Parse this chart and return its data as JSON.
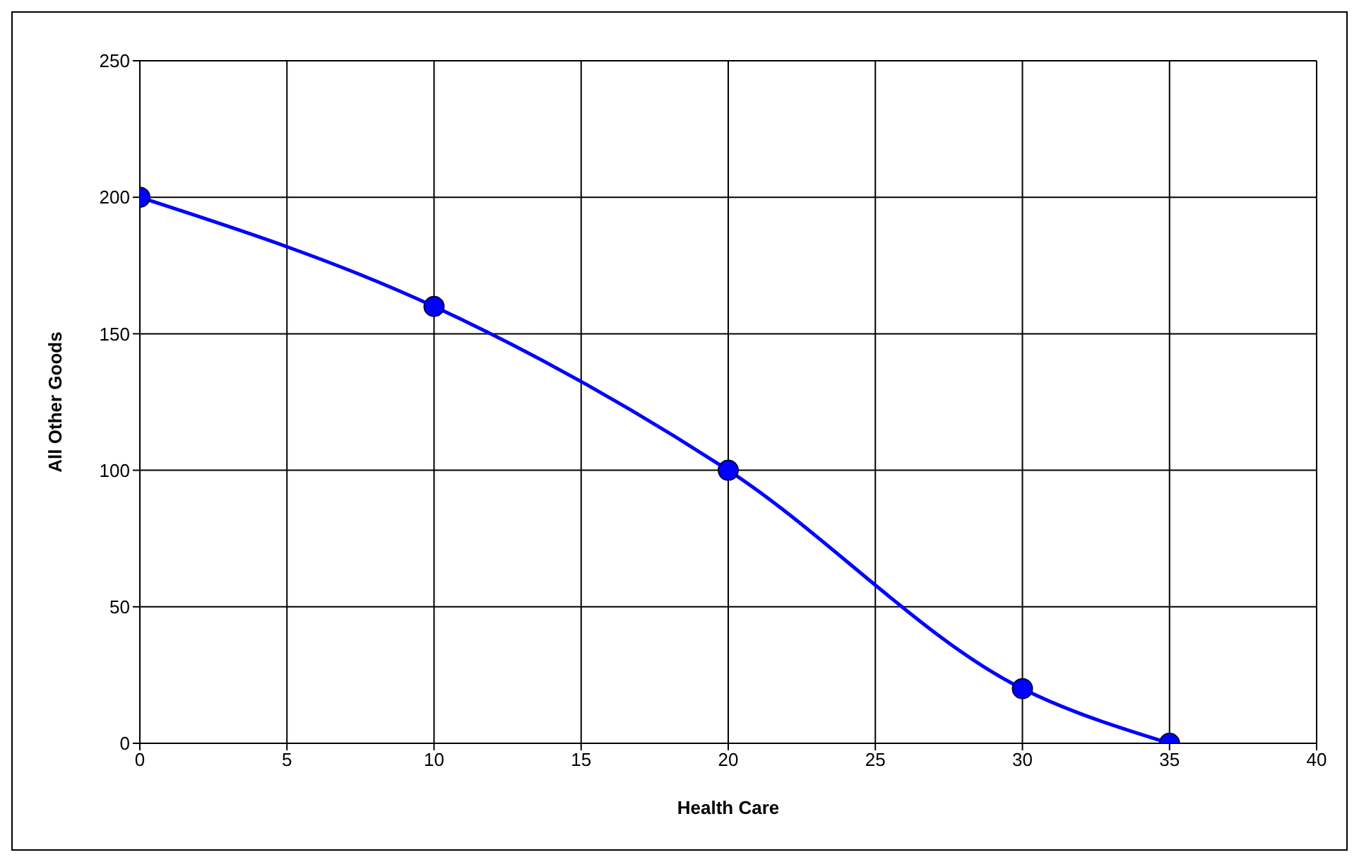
{
  "chart_data": {
    "type": "line",
    "xlabel": "Health Care",
    "ylabel": "All Other Goods",
    "x": [
      0,
      10,
      20,
      30,
      35
    ],
    "series": [
      {
        "color": "#0000ff",
        "values": [
          200,
          160,
          100,
          20,
          0
        ]
      }
    ],
    "xlim": [
      0,
      40
    ],
    "xticks": [
      0,
      5,
      10,
      15,
      20,
      25,
      30,
      35,
      40
    ],
    "ylim": [
      0,
      250
    ],
    "yticks": [
      0,
      50,
      100,
      150,
      200,
      250
    ],
    "grid": true,
    "legend": false,
    "marker": "circle",
    "line_style": "solid"
  }
}
